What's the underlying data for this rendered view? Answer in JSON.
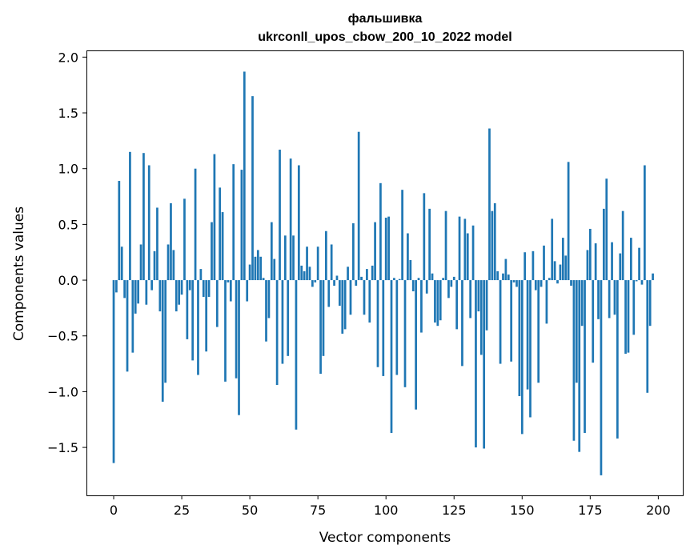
{
  "chart_data": {
    "type": "bar",
    "title_line1": "фальшивка",
    "title_line2": "ukrconll_upos_cbow_200_10_2022 model",
    "xlabel": "Vector components",
    "ylabel": "Components values",
    "xlim": [
      -10,
      209
    ],
    "ylim": [
      -1.93,
      2.06
    ],
    "xticks": [
      0,
      25,
      50,
      75,
      100,
      125,
      150,
      175,
      200
    ],
    "yticks": [
      -1.5,
      -1.0,
      -0.5,
      0.0,
      0.5,
      1.0,
      1.5,
      2.0
    ],
    "ytick_labels": [
      "−1.5",
      "−1.0",
      "−0.5",
      "0.0",
      "0.5",
      "1.0",
      "1.5",
      "2.0"
    ],
    "bar_color": "#1f77b4",
    "values": [
      -1.64,
      -0.11,
      0.89,
      0.3,
      -0.16,
      -0.82,
      1.15,
      -0.65,
      -0.3,
      -0.21,
      0.32,
      1.14,
      -0.22,
      1.03,
      -0.09,
      0.26,
      0.65,
      -0.28,
      -1.09,
      -0.92,
      0.32,
      0.69,
      0.27,
      -0.28,
      -0.22,
      -0.13,
      0.73,
      -0.53,
      -0.09,
      -0.72,
      1.0,
      -0.85,
      0.1,
      -0.15,
      -0.64,
      -0.15,
      0.52,
      1.13,
      -0.42,
      0.83,
      0.61,
      -0.91,
      -0.02,
      -0.19,
      1.04,
      -0.88,
      -1.21,
      0.99,
      1.87,
      -0.19,
      0.14,
      1.65,
      0.21,
      0.27,
      0.21,
      0.02,
      -0.55,
      -0.34,
      0.52,
      0.19,
      -0.94,
      1.17,
      -0.75,
      0.4,
      -0.68,
      1.09,
      0.4,
      -1.34,
      1.03,
      0.13,
      0.08,
      0.3,
      0.12,
      -0.06,
      -0.02,
      0.3,
      -0.84,
      -0.68,
      0.44,
      -0.24,
      0.32,
      -0.05,
      0.04,
      -0.23,
      -0.48,
      -0.44,
      0.12,
      -0.31,
      0.51,
      -0.05,
      1.33,
      0.03,
      -0.31,
      0.1,
      -0.38,
      0.13,
      0.52,
      -0.78,
      0.87,
      -0.86,
      0.56,
      0.57,
      -1.37,
      0.02,
      -0.85,
      0.01,
      0.81,
      -0.96,
      0.42,
      0.18,
      -0.1,
      -1.16,
      0.02,
      -0.47,
      0.78,
      -0.12,
      0.64,
      0.06,
      -0.38,
      -0.41,
      -0.36,
      0.02,
      0.62,
      -0.16,
      -0.06,
      0.03,
      -0.44,
      0.57,
      -0.77,
      0.55,
      0.42,
      -0.34,
      0.49,
      -1.5,
      -0.28,
      -0.67,
      -1.51,
      -0.45,
      1.36,
      0.62,
      0.69,
      0.08,
      -0.75,
      0.06,
      0.19,
      0.05,
      -0.73,
      -0.02,
      -0.06,
      -1.04,
      -1.38,
      0.25,
      -0.98,
      -1.23,
      0.26,
      -0.09,
      -0.92,
      -0.06,
      0.31,
      -0.39,
      0.02,
      0.55,
      0.17,
      -0.03,
      0.14,
      0.38,
      0.22,
      1.06,
      -0.05,
      -1.44,
      -0.92,
      -1.54,
      -0.41,
      -1.37,
      0.27,
      0.46,
      -0.74,
      0.33,
      -0.35,
      -1.75,
      0.64,
      0.91,
      -0.34,
      0.34,
      -0.31,
      -1.42,
      0.24,
      0.62,
      -0.66,
      -0.65,
      0.38,
      -0.49,
      -0.01,
      0.29,
      -0.04,
      1.03,
      -1.01,
      -0.41,
      0.06
    ]
  }
}
